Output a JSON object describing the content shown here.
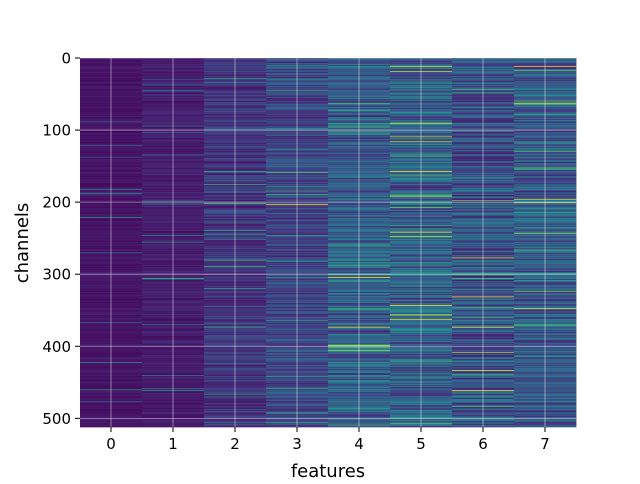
{
  "chart_data": {
    "type": "heatmap",
    "title": "",
    "xlabel": "features",
    "ylabel": "channels",
    "x_categories": [
      "0",
      "1",
      "2",
      "3",
      "4",
      "5",
      "6",
      "7"
    ],
    "x_range": [
      -0.5,
      7.5
    ],
    "y_range": [
      512,
      0
    ],
    "y_ticks": [
      0,
      100,
      200,
      300,
      400,
      500
    ],
    "n_channels": 512,
    "grid": true,
    "colormap": "viridis",
    "column_mean_intensity": [
      0.08,
      0.12,
      0.2,
      0.26,
      0.36,
      0.38,
      0.32,
      0.34
    ],
    "column_spread": [
      0.05,
      0.07,
      0.12,
      0.15,
      0.2,
      0.24,
      0.22,
      0.2
    ],
    "annotations": []
  }
}
